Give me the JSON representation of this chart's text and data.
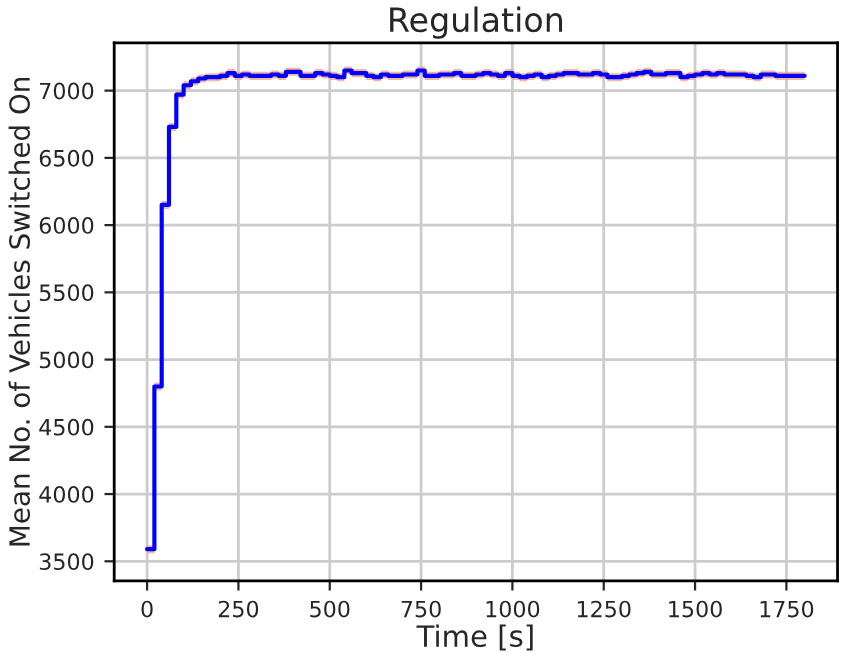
{
  "chart_data": {
    "type": "step",
    "title": "Regulation",
    "xlabel": "Time [s]",
    "ylabel": "Mean No. of Vehicles Switched On",
    "xlim": [
      -90,
      1890
    ],
    "ylim": [
      3355,
      7355
    ],
    "xticks": [
      0,
      250,
      500,
      750,
      1000,
      1250,
      1500,
      1750
    ],
    "yticks": [
      3500,
      4000,
      4500,
      5000,
      5500,
      6000,
      6500,
      7000
    ],
    "grid": true,
    "series": [
      {
        "color": "#0000ff",
        "x": [
          0,
          20,
          40,
          60,
          80,
          100,
          120,
          140,
          160,
          180,
          200,
          220,
          240,
          260,
          280,
          300,
          320,
          340,
          360,
          380,
          400,
          420,
          440,
          460,
          480,
          500,
          520,
          540,
          560,
          580,
          600,
          620,
          640,
          660,
          680,
          700,
          720,
          740,
          760,
          780,
          800,
          820,
          840,
          860,
          880,
          900,
          920,
          940,
          960,
          980,
          1000,
          1020,
          1040,
          1060,
          1080,
          1100,
          1120,
          1140,
          1160,
          1180,
          1200,
          1220,
          1240,
          1260,
          1280,
          1300,
          1320,
          1340,
          1360,
          1380,
          1400,
          1420,
          1440,
          1460,
          1480,
          1500,
          1520,
          1540,
          1560,
          1580,
          1600,
          1620,
          1640,
          1660,
          1680,
          1700,
          1720,
          1740,
          1760,
          1780,
          1800
        ],
        "values": [
          3590,
          4800,
          6150,
          6730,
          6970,
          7040,
          7070,
          7090,
          7100,
          7100,
          7110,
          7130,
          7110,
          7120,
          7110,
          7110,
          7110,
          7120,
          7110,
          7140,
          7140,
          7110,
          7110,
          7130,
          7120,
          7110,
          7100,
          7150,
          7130,
          7130,
          7110,
          7100,
          7120,
          7110,
          7110,
          7120,
          7120,
          7150,
          7110,
          7110,
          7120,
          7120,
          7130,
          7110,
          7110,
          7120,
          7130,
          7120,
          7110,
          7130,
          7110,
          7100,
          7110,
          7120,
          7100,
          7110,
          7120,
          7130,
          7130,
          7120,
          7120,
          7130,
          7120,
          7100,
          7100,
          7110,
          7120,
          7130,
          7140,
          7120,
          7120,
          7130,
          7130,
          7100,
          7110,
          7120,
          7130,
          7120,
          7130,
          7120,
          7120,
          7120,
          7110,
          7100,
          7120,
          7120,
          7110,
          7110,
          7110,
          7110,
          7110
        ],
        "lower": [
          3560,
          4770,
          6120,
          6700,
          6940,
          7010,
          7040,
          7060,
          7070,
          7070,
          7080,
          7100,
          7080,
          7090,
          7080,
          7080,
          7080,
          7090,
          7080,
          7110,
          7110,
          7080,
          7080,
          7100,
          7090,
          7080,
          7070,
          7120,
          7100,
          7100,
          7080,
          7070,
          7090,
          7080,
          7080,
          7090,
          7090,
          7120,
          7080,
          7080,
          7090,
          7090,
          7100,
          7080,
          7080,
          7090,
          7100,
          7090,
          7080,
          7100,
          7080,
          7070,
          7080,
          7090,
          7070,
          7080,
          7090,
          7100,
          7100,
          7090,
          7090,
          7100,
          7090,
          7070,
          7070,
          7080,
          7090,
          7100,
          7110,
          7090,
          7090,
          7100,
          7100,
          7070,
          7080,
          7090,
          7100,
          7090,
          7100,
          7090,
          7090,
          7090,
          7080,
          7070,
          7090,
          7090,
          7080,
          7080,
          7080,
          7080,
          7080
        ],
        "upper": [
          3620,
          4830,
          6180,
          6760,
          7000,
          7070,
          7100,
          7120,
          7130,
          7130,
          7140,
          7160,
          7140,
          7150,
          7140,
          7140,
          7140,
          7150,
          7140,
          7170,
          7170,
          7140,
          7140,
          7160,
          7150,
          7140,
          7130,
          7180,
          7160,
          7160,
          7140,
          7130,
          7150,
          7140,
          7140,
          7150,
          7150,
          7180,
          7140,
          7140,
          7150,
          7150,
          7160,
          7140,
          7140,
          7150,
          7160,
          7150,
          7140,
          7160,
          7140,
          7130,
          7140,
          7150,
          7130,
          7140,
          7150,
          7160,
          7160,
          7150,
          7150,
          7160,
          7150,
          7130,
          7130,
          7140,
          7150,
          7160,
          7170,
          7150,
          7150,
          7160,
          7160,
          7130,
          7140,
          7150,
          7160,
          7150,
          7160,
          7150,
          7150,
          7150,
          7140,
          7130,
          7150,
          7150,
          7140,
          7140,
          7140,
          7140,
          7140
        ]
      }
    ]
  }
}
